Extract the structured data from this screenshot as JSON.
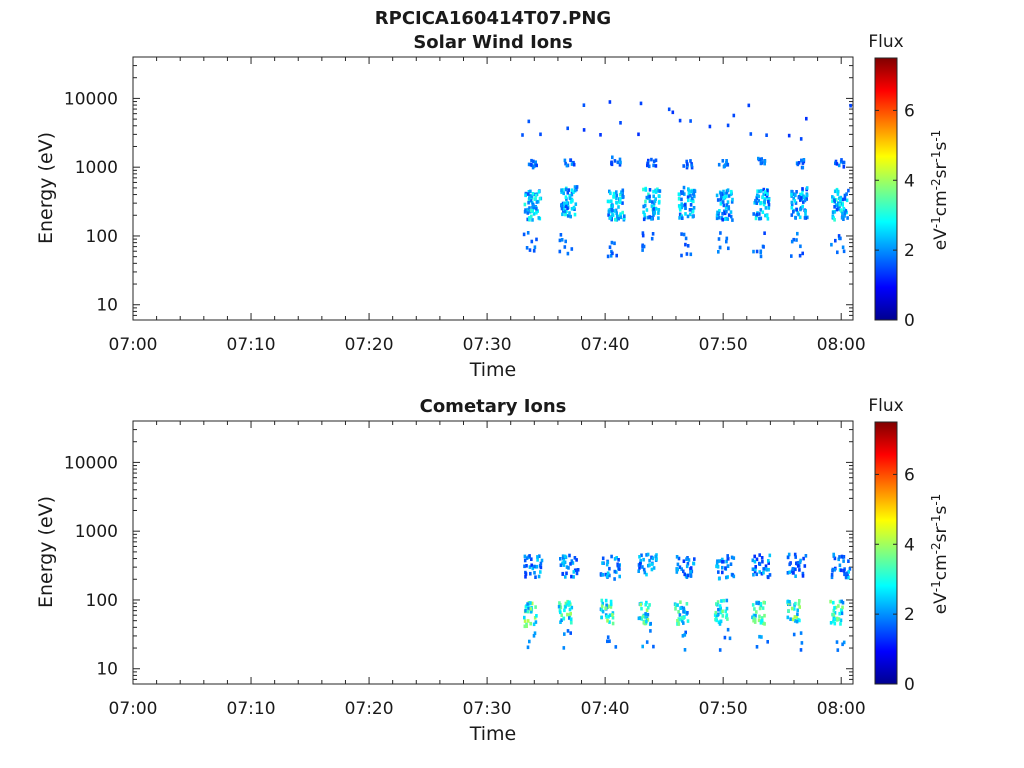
{
  "figure_title": "RPCICA160414T07.PNG",
  "colors": {
    "colormap": "jet",
    "scale_low": "#00008f",
    "scale_mid": "#00ffff",
    "scale_high": "#800000"
  },
  "chart_data": [
    {
      "type": "heatmap",
      "title": "Solar Wind Ions",
      "xlabel": "Time",
      "ylabel": "Energy (eV)",
      "y_scale": "log",
      "xlim": [
        "07:00",
        "08:01"
      ],
      "ylim": [
        6,
        40000
      ],
      "x_ticks": [
        "07:00",
        "07:10",
        "07:20",
        "07:30",
        "07:40",
        "07:50",
        "08:00"
      ],
      "y_ticks": [
        "10",
        "100",
        "1000",
        "10000"
      ],
      "colorbar": {
        "title": "Flux",
        "label": "eV-1 cm-2 sr-1 s-1",
        "range": [
          0,
          7.5
        ],
        "ticks": [
          "0",
          "2",
          "4",
          "6"
        ]
      },
      "bursts": [
        {
          "time": "07:33:45",
          "main_energy": 300,
          "main_flux": 3.2,
          "high_energy": 1200
        },
        {
          "time": "07:36:50",
          "main_energy": 330,
          "main_flux": 3.0,
          "high_energy": 1250
        },
        {
          "time": "07:40:50",
          "main_energy": 300,
          "main_flux": 3.3,
          "high_energy": 1300
        },
        {
          "time": "07:43:50",
          "main_energy": 310,
          "main_flux": 3.3,
          "high_energy": 1200
        },
        {
          "time": "07:46:50",
          "main_energy": 320,
          "main_flux": 3.0,
          "high_energy": 1200
        },
        {
          "time": "07:50:00",
          "main_energy": 300,
          "main_flux": 2.9,
          "high_energy": 1200
        },
        {
          "time": "07:53:10",
          "main_energy": 310,
          "main_flux": 3.0,
          "high_energy": 1250
        },
        {
          "time": "07:56:20",
          "main_energy": 320,
          "main_flux": 2.8,
          "high_energy": 1200
        },
        {
          "time": "07:59:50",
          "main_energy": 300,
          "main_flux": 3.2,
          "high_energy": 1200
        }
      ]
    },
    {
      "type": "heatmap",
      "title": "Cometary Ions",
      "xlabel": "Time",
      "ylabel": "Energy (eV)",
      "y_scale": "log",
      "xlim": [
        "07:00",
        "08:01"
      ],
      "ylim": [
        6,
        40000
      ],
      "x_ticks": [
        "07:00",
        "07:10",
        "07:20",
        "07:30",
        "07:40",
        "07:50",
        "08:00"
      ],
      "y_ticks": [
        "10",
        "100",
        "1000",
        "10000"
      ],
      "colorbar": {
        "title": "Flux",
        "label": "eV-1 cm-2 sr-1 s-1",
        "range": [
          0,
          7.5
        ],
        "ticks": [
          "0",
          "2",
          "4",
          "6"
        ]
      },
      "bursts": [
        {
          "time": "07:33:50",
          "upper_energy": 330,
          "upper_flux": 2.6,
          "lower_energy": 65,
          "lower_flux": 4.2
        },
        {
          "time": "07:36:50",
          "upper_energy": 340,
          "upper_flux": 2.5,
          "lower_energy": 70,
          "lower_flux": 4.0
        },
        {
          "time": "07:40:20",
          "upper_energy": 320,
          "upper_flux": 2.5,
          "lower_energy": 70,
          "lower_flux": 4.0
        },
        {
          "time": "07:43:30",
          "upper_energy": 350,
          "upper_flux": 2.6,
          "lower_energy": 70,
          "lower_flux": 4.1
        },
        {
          "time": "07:46:40",
          "upper_energy": 330,
          "upper_flux": 2.5,
          "lower_energy": 70,
          "lower_flux": 3.9
        },
        {
          "time": "07:50:00",
          "upper_energy": 320,
          "upper_flux": 2.5,
          "lower_energy": 70,
          "lower_flux": 3.8
        },
        {
          "time": "07:53:10",
          "upper_energy": 330,
          "upper_flux": 2.5,
          "lower_energy": 70,
          "lower_flux": 4.0
        },
        {
          "time": "07:56:10",
          "upper_energy": 330,
          "upper_flux": 2.5,
          "lower_energy": 70,
          "lower_flux": 4.3
        },
        {
          "time": "07:59:50",
          "upper_energy": 330,
          "upper_flux": 2.6,
          "lower_energy": 70,
          "lower_flux": 4.0
        }
      ]
    }
  ]
}
